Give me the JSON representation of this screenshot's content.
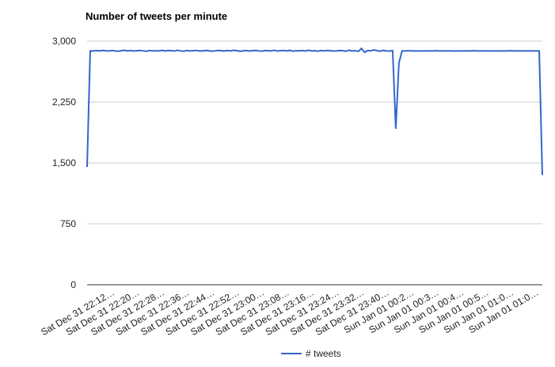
{
  "chart_data": {
    "type": "line",
    "title": "Number of tweets per minute",
    "categories": [
      null,
      null,
      null,
      null,
      null,
      null,
      null,
      null,
      null,
      "Sat Dec 31 22:12…",
      null,
      null,
      null,
      null,
      null,
      null,
      null,
      "Sat Dec 31 22:20…",
      null,
      null,
      null,
      null,
      null,
      null,
      null,
      "Sat Dec 31 22:28…",
      null,
      null,
      null,
      null,
      null,
      null,
      null,
      "Sat Dec 31 22:36…",
      null,
      null,
      null,
      null,
      null,
      null,
      null,
      "Sat Dec 31 22:44…",
      null,
      null,
      null,
      null,
      null,
      null,
      null,
      "Sat Dec 31 22:52…",
      null,
      null,
      null,
      null,
      null,
      null,
      null,
      "Sat Dec 31 23:00…",
      null,
      null,
      null,
      null,
      null,
      null,
      null,
      "Sat Dec 31 23:08…",
      null,
      null,
      null,
      null,
      null,
      null,
      null,
      "Sat Dec 31 23:16…",
      null,
      null,
      null,
      null,
      null,
      null,
      null,
      "Sat Dec 31 23:24…",
      null,
      null,
      null,
      null,
      null,
      null,
      null,
      "Sat Dec 31 23:32…",
      null,
      null,
      null,
      null,
      null,
      null,
      null,
      "Sat Dec 31 23:40…",
      null,
      null,
      null,
      null,
      null,
      null,
      null,
      "Sun Jan 01 00:2…",
      null,
      null,
      null,
      null,
      null,
      null,
      null,
      "Sun Jan 01 00:3…",
      null,
      null,
      null,
      null,
      null,
      null,
      null,
      "Sun Jan 01 00:4…",
      null,
      null,
      null,
      null,
      null,
      null,
      null,
      "Sun Jan 01 00:5…",
      null,
      null,
      null,
      null,
      null,
      null,
      null,
      "Sun Jan 01 01:0…",
      null,
      null,
      null,
      null,
      null,
      null,
      null,
      "Sun Jan 01 01:0…",
      null
    ],
    "series": [
      {
        "name": "# tweets",
        "color": "#3366cc",
        "values": [
          1450,
          2880,
          2878,
          2884,
          2880,
          2886,
          2882,
          2878,
          2884,
          2880,
          2876,
          2882,
          2888,
          2880,
          2884,
          2878,
          2882,
          2886,
          2880,
          2876,
          2884,
          2880,
          2882,
          2878,
          2886,
          2880,
          2884,
          2882,
          2878,
          2888,
          2880,
          2876,
          2884,
          2880,
          2882,
          2886,
          2878,
          2880,
          2884,
          2882,
          2876,
          2880,
          2886,
          2882,
          2878,
          2884,
          2880,
          2888,
          2882,
          2876,
          2880,
          2884,
          2878,
          2882,
          2886,
          2880,
          2876,
          2884,
          2882,
          2880,
          2888,
          2878,
          2882,
          2884,
          2880,
          2886,
          2876,
          2882,
          2880,
          2884,
          2878,
          2888,
          2880,
          2882,
          2876,
          2884,
          2880,
          2886,
          2882,
          2878,
          2880,
          2884,
          2882,
          2876,
          2888,
          2880,
          2882,
          2874,
          2910,
          2862,
          2884,
          2880,
          2892,
          2882,
          2876,
          2886,
          2880,
          2878,
          2882,
          1920,
          2730,
          2880,
          2880,
          2882,
          2880,
          2880,
          2880,
          2878,
          2880,
          2880,
          2880,
          2880,
          2882,
          2880,
          2880,
          2880,
          2880,
          2880,
          2878,
          2880,
          2880,
          2880,
          2880,
          2880,
          2882,
          2880,
          2880,
          2880,
          2880,
          2880,
          2880,
          2878,
          2880,
          2880,
          2880,
          2880,
          2882,
          2880,
          2880,
          2880,
          2880,
          2880,
          2880,
          2880,
          2880,
          2880,
          1350
        ]
      }
    ],
    "ylim": [
      0,
      3000
    ],
    "yticks": [
      0,
      {
        "value": 750,
        "label": "750"
      },
      {
        "value": 1500,
        "label": "1,500"
      },
      {
        "value": 2250,
        "label": "2,250"
      },
      {
        "value": 3000,
        "label": "3,000"
      }
    ],
    "grid": true,
    "legend": "bottom"
  }
}
